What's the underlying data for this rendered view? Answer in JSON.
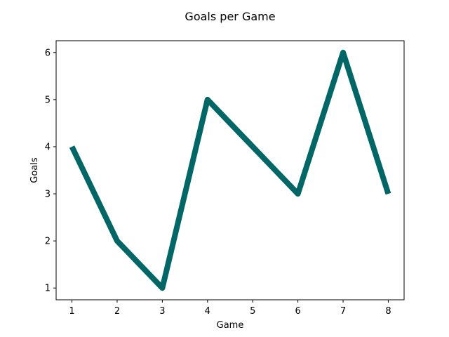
{
  "chart_data": {
    "type": "line",
    "title": "Goals per Game",
    "xlabel": "Game",
    "ylabel": "Goals",
    "x": [
      1,
      2,
      3,
      4,
      5,
      6,
      7,
      8
    ],
    "series": [
      {
        "values": [
          4,
          2,
          1,
          5,
          4,
          3,
          6,
          3
        ],
        "color": "#006666"
      }
    ],
    "xticks": [
      "1",
      "2",
      "3",
      "4",
      "5",
      "6",
      "7",
      "8"
    ],
    "yticks": [
      "1",
      "2",
      "3",
      "4",
      "5",
      "6"
    ],
    "xlim": [
      0.65,
      8.35
    ],
    "ylim": [
      0.75,
      6.25
    ],
    "grid": false,
    "legend": "none"
  }
}
